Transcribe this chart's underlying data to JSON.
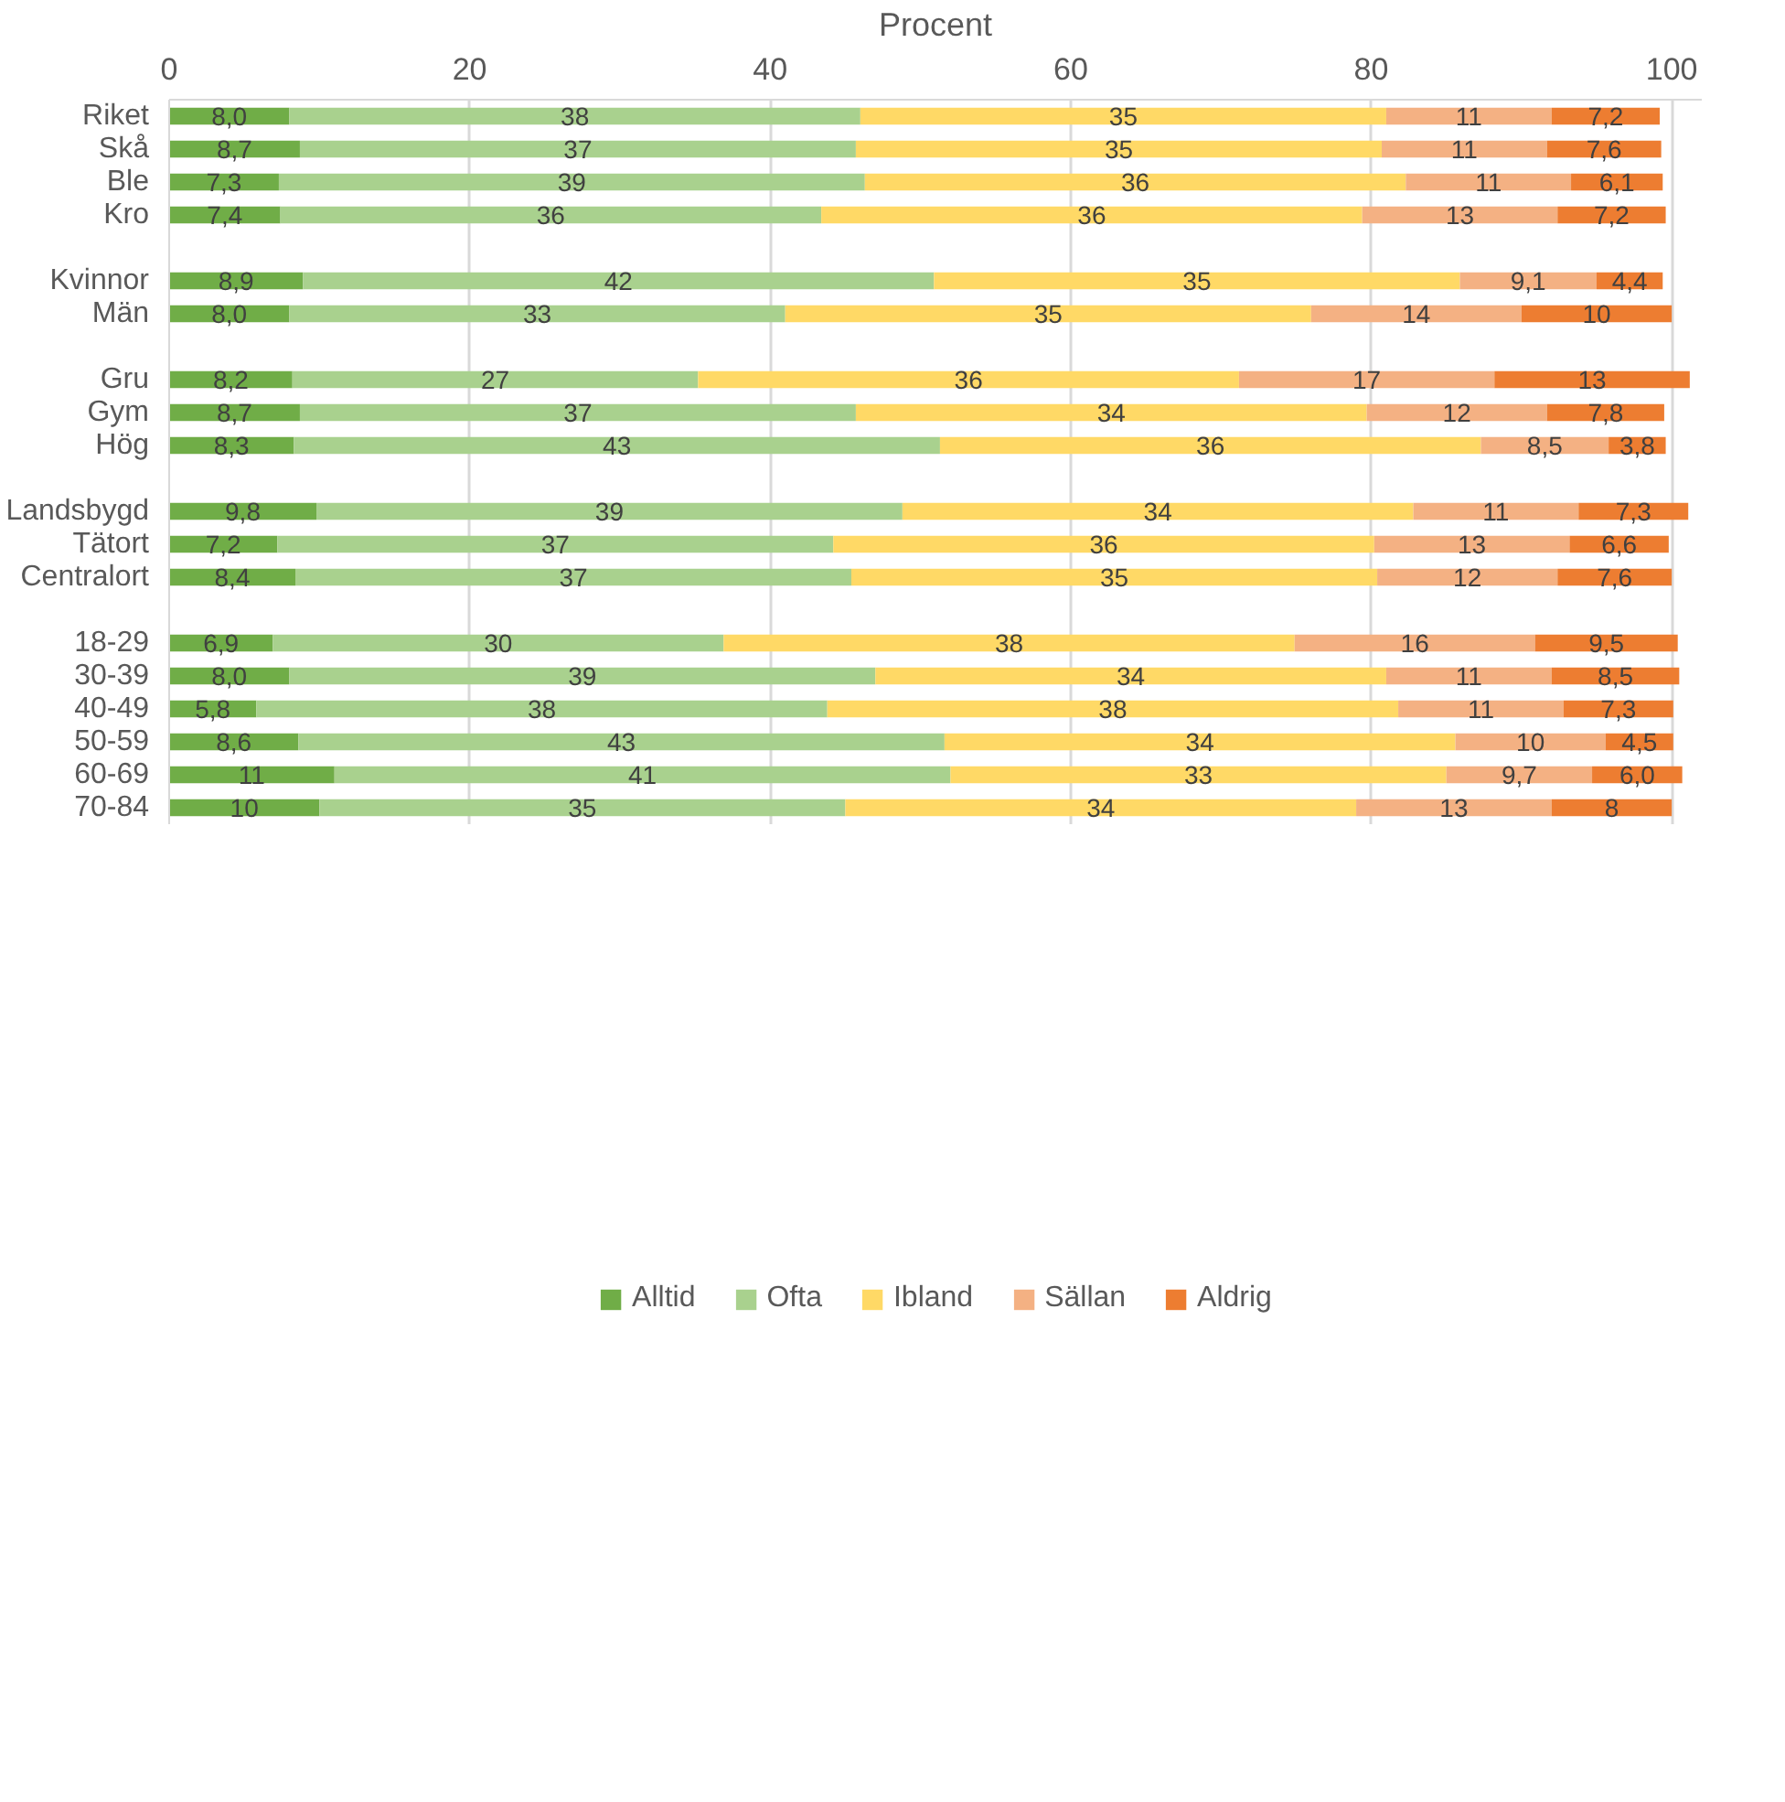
{
  "chart_data": {
    "type": "bar",
    "orientation": "horizontal",
    "stacked": true,
    "xlabel": "Procent",
    "xlim": [
      0,
      102
    ],
    "xticks": [
      0,
      20,
      40,
      60,
      80,
      100
    ],
    "grid": "x",
    "legend": "bottom",
    "categories": [
      "Riket",
      "Skå",
      "Ble",
      "Kro",
      null,
      "Kvinnor",
      "Män",
      null,
      "Gru",
      "Gym",
      "Hög",
      null,
      "Landsbygd",
      "Tätort",
      "Centralort",
      null,
      "18-29",
      "30-39",
      "40-49",
      "50-59",
      "60-69",
      "70-84"
    ],
    "series": [
      {
        "name": "Alltid",
        "color": "#70ad47",
        "values": [
          8.0,
          8.7,
          7.3,
          7.4,
          null,
          8.9,
          8.0,
          null,
          8.2,
          8.7,
          8.3,
          null,
          9.8,
          7.2,
          8.4,
          null,
          6.9,
          8.0,
          5.8,
          8.6,
          11,
          10
        ],
        "value_labels": [
          "8,0",
          "8,7",
          "7,3",
          "7,4",
          null,
          "8,9",
          "8,0",
          null,
          "8,2",
          "8,7",
          "8,3",
          null,
          "9,8",
          "7,2",
          "8,4",
          null,
          "6,9",
          "8,0",
          "5,8",
          "8,6",
          "11",
          "10"
        ]
      },
      {
        "name": "Ofta",
        "color": "#a9d18e",
        "values": [
          38,
          37,
          39,
          36,
          null,
          42,
          33,
          null,
          27,
          37,
          43,
          null,
          39,
          37,
          37,
          null,
          30,
          39,
          38,
          43,
          41,
          35
        ],
        "value_labels": [
          "38",
          "37",
          "39",
          "36",
          null,
          "42",
          "33",
          null,
          "27",
          "37",
          "43",
          null,
          "39",
          "37",
          "37",
          null,
          "30",
          "39",
          "38",
          "43",
          "41",
          "35"
        ]
      },
      {
        "name": "Ibland",
        "color": "#ffd966",
        "values": [
          35,
          35,
          36,
          36,
          null,
          35,
          35,
          null,
          36,
          34,
          36,
          null,
          34,
          36,
          35,
          null,
          38,
          34,
          38,
          34,
          33,
          34
        ],
        "value_labels": [
          "35",
          "35",
          "36",
          "36",
          null,
          "35",
          "35",
          null,
          "36",
          "34",
          "36",
          null,
          "34",
          "36",
          "35",
          null,
          "38",
          "34",
          "38",
          "34",
          "33",
          "34"
        ]
      },
      {
        "name": "Sällan",
        "color": "#f4b183",
        "values": [
          11,
          11,
          11,
          13,
          null,
          9.1,
          14,
          null,
          17,
          12,
          8.5,
          null,
          11,
          13,
          12,
          null,
          16,
          11,
          11,
          10,
          9.7,
          13
        ],
        "value_labels": [
          "11",
          "11",
          "11",
          "13",
          null,
          "9,1",
          "14",
          null,
          "17",
          "12",
          "8,5",
          null,
          "11",
          "13",
          "12",
          null,
          "16",
          "11",
          "11",
          "10",
          "9,7",
          "13"
        ]
      },
      {
        "name": "Aldrig",
        "color": "#ed7d31",
        "values": [
          7.2,
          7.6,
          6.1,
          7.2,
          null,
          4.4,
          10,
          null,
          13,
          7.8,
          3.8,
          null,
          7.3,
          6.6,
          7.6,
          null,
          9.5,
          8.5,
          7.3,
          4.5,
          6.0,
          8
        ],
        "value_labels": [
          "7,2",
          "7,6",
          "6,1",
          "7,2",
          null,
          "4,4",
          "10",
          null,
          "13",
          "7,8",
          "3,8",
          null,
          "7,3",
          "6,6",
          "7,6",
          null,
          "9,5",
          "8,5",
          "7,3",
          "4,5",
          "6,0",
          "8"
        ]
      }
    ]
  }
}
